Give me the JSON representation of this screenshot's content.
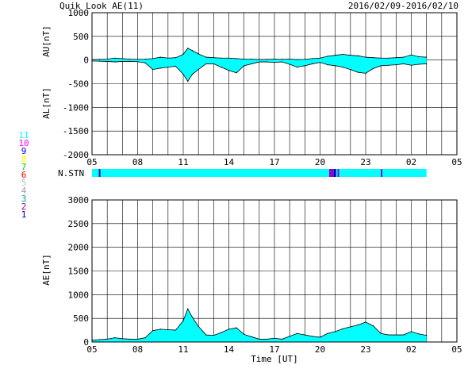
{
  "header": {
    "title": "Quik Look AE(11)",
    "date_range": "2016/02/09-2016/02/10"
  },
  "colors": {
    "fill": "#00ffff",
    "line": "#000000",
    "grid": "#000000",
    "stn_purple": "#9900cc",
    "stn_blue": "#0000cc"
  },
  "station_legend": [
    {
      "label": "11",
      "color": "#00ffff"
    },
    {
      "label": "10",
      "color": "#ff00ff"
    },
    {
      "label": "9",
      "color": "#0000ff"
    },
    {
      "label": "8",
      "color": "#ffff00"
    },
    {
      "label": "7",
      "color": "#00cc00"
    },
    {
      "label": "6",
      "color": "#ff0000"
    },
    {
      "label": "5",
      "color": "#c0c0c0"
    },
    {
      "label": "4",
      "color": "#a0a0a0"
    },
    {
      "label": "3",
      "color": "#00a0a0"
    },
    {
      "label": "2",
      "color": "#a000a0"
    },
    {
      "label": "1",
      "color": "#0000a0"
    }
  ],
  "nstn_label": "N.STN",
  "x_tick_labels": [
    "05",
    "08",
    "11",
    "14",
    "17",
    "20",
    "23",
    "02",
    "05"
  ],
  "x_axis_label": "Time [UT]",
  "chart_data": [
    {
      "type": "area",
      "name": "AU/AL",
      "ylabel_top": "AU[nT]",
      "ylabel_bottom": "AL[nT]",
      "ylim": [
        -2000,
        1000
      ],
      "yticks": [
        1000,
        500,
        0,
        -500,
        -1000,
        -1500,
        -2000
      ],
      "xlim_hours": [
        5,
        29
      ],
      "grid": true,
      "x_hours": [
        5.0,
        5.5,
        6.0,
        6.5,
        7.0,
        7.5,
        8.0,
        8.5,
        9.0,
        9.5,
        10.0,
        10.5,
        11.0,
        11.3,
        11.6,
        12.0,
        12.5,
        13.0,
        13.5,
        14.0,
        14.5,
        15.0,
        15.5,
        16.0,
        16.5,
        17.0,
        17.5,
        18.0,
        18.5,
        19.0,
        19.5,
        20.0,
        20.5,
        21.0,
        21.5,
        22.0,
        22.5,
        23.0,
        23.5,
        24.0,
        24.5,
        25.0,
        25.5,
        26.0,
        26.5,
        27.0
      ],
      "au": [
        10,
        15,
        20,
        40,
        30,
        20,
        15,
        20,
        30,
        60,
        40,
        50,
        120,
        250,
        200,
        130,
        60,
        50,
        40,
        40,
        30,
        20,
        20,
        10,
        15,
        20,
        15,
        20,
        10,
        15,
        30,
        40,
        80,
        100,
        120,
        100,
        90,
        60,
        50,
        40,
        40,
        50,
        60,
        110,
        70,
        60
      ],
      "al": [
        -20,
        -25,
        -30,
        -40,
        -30,
        -30,
        -35,
        -60,
        -200,
        -170,
        -150,
        -130,
        -300,
        -450,
        -300,
        -200,
        -80,
        -80,
        -150,
        -220,
        -270,
        -120,
        -80,
        -40,
        -40,
        -50,
        -40,
        -90,
        -150,
        -120,
        -80,
        -50,
        -100,
        -120,
        -150,
        -200,
        -260,
        -280,
        -180,
        -120,
        -110,
        -100,
        -80,
        -110,
        -90,
        -80
      ]
    },
    {
      "type": "area",
      "name": "AE",
      "ylabel": "AE[nT]",
      "ylim": [
        0,
        3000
      ],
      "yticks": [
        3000,
        2500,
        2000,
        1500,
        1000,
        500,
        0
      ],
      "xlim_hours": [
        5,
        29
      ],
      "grid": true,
      "x_hours": [
        5.0,
        5.5,
        6.0,
        6.5,
        7.0,
        7.5,
        8.0,
        8.5,
        9.0,
        9.5,
        10.0,
        10.5,
        11.0,
        11.3,
        11.6,
        12.0,
        12.5,
        13.0,
        13.5,
        14.0,
        14.5,
        15.0,
        15.5,
        16.0,
        16.5,
        17.0,
        17.5,
        18.0,
        18.5,
        19.0,
        19.5,
        20.0,
        20.5,
        21.0,
        21.5,
        22.0,
        22.5,
        23.0,
        23.5,
        24.0,
        24.5,
        25.0,
        25.5,
        26.0,
        26.5,
        27.0
      ],
      "values": [
        40,
        50,
        60,
        90,
        70,
        60,
        60,
        90,
        240,
        270,
        260,
        250,
        450,
        700,
        520,
        330,
        150,
        140,
        200,
        270,
        300,
        160,
        110,
        60,
        60,
        80,
        60,
        120,
        180,
        150,
        120,
        100,
        180,
        220,
        280,
        320,
        360,
        420,
        340,
        180,
        150,
        150,
        150,
        220,
        170,
        140
      ]
    }
  ],
  "nstn_data": {
    "count_hours": [
      5.0,
      29.0
    ],
    "default": 11,
    "dips": [
      {
        "start": 5.45,
        "end": 5.55,
        "station_count": 9
      },
      {
        "start": 20.6,
        "end": 20.9,
        "station_count": 10
      },
      {
        "start": 20.9,
        "end": 21.05,
        "station_count": 9
      },
      {
        "start": 21.15,
        "end": 21.25,
        "station_count": 10
      },
      {
        "start": 24.0,
        "end": 24.1,
        "station_count": 10
      }
    ]
  }
}
